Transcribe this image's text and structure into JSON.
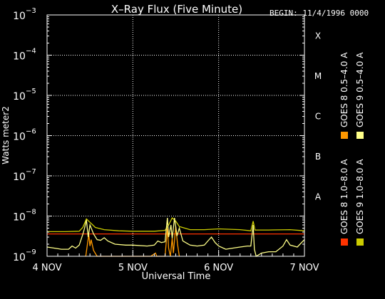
{
  "chart_data": {
    "type": "line",
    "title": "X–Ray Flux (Five Minute)",
    "begin_label": "BEGIN: 11/4/1996 0000",
    "xlabel": "Universal Time",
    "ylabel": "Watts meter2",
    "y_scale": "log",
    "ylim": [
      1e-09,
      0.001
    ],
    "y_ticks": [
      {
        "base": "10",
        "exp": "−9",
        "value": 1e-09
      },
      {
        "base": "10",
        "exp": "−8",
        "value": 1e-08
      },
      {
        "base": "10",
        "exp": "−7",
        "value": 1e-07
      },
      {
        "base": "10",
        "exp": "−6",
        "value": 1e-06
      },
      {
        "base": "10",
        "exp": "−5",
        "value": 1e-05
      },
      {
        "base": "10",
        "exp": "−4",
        "value": 0.0001
      },
      {
        "base": "10",
        "exp": "−3",
        "value": 0.001
      }
    ],
    "xlim": [
      "1996-11-04T00:00",
      "1996-11-07T00:00"
    ],
    "x_ticks": [
      {
        "label": "4 NOV",
        "value": "1996-11-04T00:00"
      },
      {
        "label": "5 NOV",
        "value": "1996-11-05T00:00"
      },
      {
        "label": "6 NOV",
        "value": "1996-11-06T00:00"
      },
      {
        "label": "7 NOV",
        "value": "1996-11-07T00:00"
      }
    ],
    "flare_classes": [
      {
        "label": "A",
        "value": 1e-08
      },
      {
        "label": "B",
        "value": 1e-07
      },
      {
        "label": "C",
        "value": 1e-06
      },
      {
        "label": "M",
        "value": 1e-05
      },
      {
        "label": "X",
        "value": 0.0001
      }
    ],
    "grid": true,
    "legend_placement": "right",
    "series": [
      {
        "name": "GOES 8 1.0–8.0 A",
        "color": "#ff3300",
        "points": [
          [
            "1996-11-04T00:00",
            3.6e-09
          ],
          [
            "1996-11-04T06:00",
            3.6e-09
          ],
          [
            "1996-11-04T12:00",
            3.6e-09
          ],
          [
            "1996-11-04T18:00",
            3.6e-09
          ],
          [
            "1996-11-05T00:00",
            3.6e-09
          ],
          [
            "1996-11-05T06:00",
            3.6e-09
          ],
          [
            "1996-11-05T12:00",
            3.6e-09
          ],
          [
            "1996-11-05T18:00",
            3.6e-09
          ],
          [
            "1996-11-06T00:00",
            3.6e-09
          ],
          [
            "1996-11-06T06:00",
            3.6e-09
          ],
          [
            "1996-11-06T12:00",
            3.6e-09
          ],
          [
            "1996-11-06T18:00",
            3.6e-09
          ],
          [
            "1996-11-07T00:00",
            3.6e-09
          ]
        ]
      },
      {
        "name": "GOES 8 0.5–4.0 A",
        "color": "#ff9900",
        "points": [
          [
            "1996-11-04T10:50",
            1e-09
          ],
          [
            "1996-11-04T11:40",
            3.5e-09
          ],
          [
            "1996-11-04T12:00",
            1.8e-09
          ],
          [
            "1996-11-04T12:20",
            2.6e-09
          ],
          [
            "1996-11-04T13:00",
            1.4e-09
          ],
          [
            "1996-11-04T14:00",
            1e-09
          ],
          [
            "1996-11-05T05:00",
            1e-09
          ],
          [
            "1996-11-05T06:20",
            1.2e-09
          ],
          [
            "1996-11-05T06:40",
            1e-09
          ],
          [
            "1996-11-05T09:00",
            1e-09
          ],
          [
            "1996-11-05T09:40",
            5e-09
          ],
          [
            "1996-11-05T10:00",
            1.6e-09
          ],
          [
            "1996-11-05T10:30",
            1e-09
          ],
          [
            "1996-11-05T11:00",
            2.8e-09
          ],
          [
            "1996-11-05T11:20",
            1.2e-09
          ],
          [
            "1996-11-05T12:00",
            5.5e-09
          ],
          [
            "1996-11-05T12:30",
            2e-09
          ],
          [
            "1996-11-05T13:00",
            1e-09
          ]
        ]
      },
      {
        "name": "GOES 9 1.0–8.0 A",
        "color": "#cccc00",
        "points": [
          [
            "1996-11-04T00:00",
            4.1e-09
          ],
          [
            "1996-11-04T05:00",
            4.1e-09
          ],
          [
            "1996-11-04T09:00",
            4.2e-09
          ],
          [
            "1996-11-04T10:00",
            5.2e-09
          ],
          [
            "1996-11-04T11:00",
            8.5e-09
          ],
          [
            "1996-11-04T12:00",
            7e-09
          ],
          [
            "1996-11-04T13:30",
            5.2e-09
          ],
          [
            "1996-11-04T16:00",
            4.6e-09
          ],
          [
            "1996-11-04T20:00",
            4.3e-09
          ],
          [
            "1996-11-05T00:00",
            4.2e-09
          ],
          [
            "1996-11-05T06:00",
            4.2e-09
          ],
          [
            "1996-11-05T09:00",
            4.4e-09
          ],
          [
            "1996-11-05T10:00",
            6e-09
          ],
          [
            "1996-11-05T11:00",
            9e-09
          ],
          [
            "1996-11-05T12:00",
            7.5e-09
          ],
          [
            "1996-11-05T13:00",
            5.5e-09
          ],
          [
            "1996-11-05T16:00",
            4.6e-09
          ],
          [
            "1996-11-05T20:00",
            4.6e-09
          ],
          [
            "1996-11-06T00:00",
            4.8e-09
          ],
          [
            "1996-11-06T06:00",
            4.6e-09
          ],
          [
            "1996-11-06T09:00",
            4.3e-09
          ],
          [
            "1996-11-06T09:40",
            7.5e-09
          ],
          [
            "1996-11-06T10:10",
            4.5e-09
          ],
          [
            "1996-11-06T14:00",
            4.5e-09
          ],
          [
            "1996-11-06T20:00",
            4.6e-09
          ],
          [
            "1996-11-07T00:00",
            4.3e-09
          ]
        ]
      },
      {
        "name": "GOES 9 0.5–4.0 A",
        "color": "#ffff88",
        "points": [
          [
            "1996-11-04T00:00",
            1.7e-09
          ],
          [
            "1996-11-04T02:00",
            1.6e-09
          ],
          [
            "1996-11-04T04:00",
            1.5e-09
          ],
          [
            "1996-11-04T06:00",
            1.5e-09
          ],
          [
            "1996-11-04T07:00",
            1.8e-09
          ],
          [
            "1996-11-04T08:00",
            1.6e-09
          ],
          [
            "1996-11-04T09:00",
            1.9e-09
          ],
          [
            "1996-11-04T10:00",
            3.5e-09
          ],
          [
            "1996-11-04T10:30",
            5e-09
          ],
          [
            "1996-11-04T11:00",
            8e-09
          ],
          [
            "1996-11-04T11:30",
            3e-09
          ],
          [
            "1996-11-04T12:00",
            6e-09
          ],
          [
            "1996-11-04T13:00",
            3.6e-09
          ],
          [
            "1996-11-04T14:00",
            2.6e-09
          ],
          [
            "1996-11-04T15:00",
            2.5e-09
          ],
          [
            "1996-11-04T16:00",
            2.9e-09
          ],
          [
            "1996-11-04T17:00",
            2.4e-09
          ],
          [
            "1996-11-04T19:00",
            2e-09
          ],
          [
            "1996-11-04T22:00",
            1.9e-09
          ],
          [
            "1996-11-05T00:00",
            1.9e-09
          ],
          [
            "1996-11-05T04:00",
            1.8e-09
          ],
          [
            "1996-11-05T06:00",
            1.9e-09
          ],
          [
            "1996-11-05T07:00",
            2.4e-09
          ],
          [
            "1996-11-05T08:00",
            2.2e-09
          ],
          [
            "1996-11-05T09:00",
            2.3e-09
          ],
          [
            "1996-11-05T09:40",
            9e-09
          ],
          [
            "1996-11-05T10:00",
            3e-09
          ],
          [
            "1996-11-05T10:40",
            6e-09
          ],
          [
            "1996-11-05T11:00",
            2.8e-09
          ],
          [
            "1996-11-05T11:40",
            9e-09
          ],
          [
            "1996-11-05T12:20",
            3.2e-09
          ],
          [
            "1996-11-05T13:00",
            5e-09
          ],
          [
            "1996-11-05T14:00",
            2.4e-09
          ],
          [
            "1996-11-05T16:00",
            1.9e-09
          ],
          [
            "1996-11-05T18:00",
            1.8e-09
          ],
          [
            "1996-11-05T20:00",
            1.9e-09
          ],
          [
            "1996-11-05T21:00",
            2.4e-09
          ],
          [
            "1996-11-05T22:00",
            3e-09
          ],
          [
            "1996-11-05T23:00",
            2.2e-09
          ],
          [
            "1996-11-06T00:00",
            1.8e-09
          ],
          [
            "1996-11-06T02:00",
            1.5e-09
          ],
          [
            "1996-11-06T04:00",
            1.6e-09
          ],
          [
            "1996-11-06T06:00",
            1.7e-09
          ],
          [
            "1996-11-06T08:00",
            1.8e-09
          ],
          [
            "1996-11-06T09:00",
            1.8e-09
          ],
          [
            "1996-11-06T09:40",
            6e-09
          ],
          [
            "1996-11-06T10:00",
            1.5e-09
          ],
          [
            "1996-11-06T10:30",
            1e-09
          ],
          [
            "1996-11-06T12:00",
            1.2e-09
          ],
          [
            "1996-11-06T14:00",
            1.3e-09
          ],
          [
            "1996-11-06T16:00",
            1.3e-09
          ],
          [
            "1996-11-06T18:00",
            1.8e-09
          ],
          [
            "1996-11-06T19:00",
            2.6e-09
          ],
          [
            "1996-11-06T20:00",
            1.9e-09
          ],
          [
            "1996-11-06T22:00",
            1.7e-09
          ],
          [
            "1996-11-07T00:00",
            2.6e-09
          ]
        ]
      }
    ]
  }
}
